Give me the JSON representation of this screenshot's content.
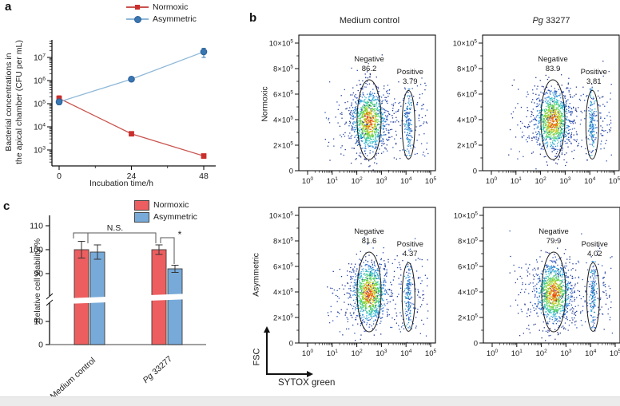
{
  "figure": {
    "panel_labels": {
      "a": "a",
      "b": "b",
      "c": "c"
    }
  },
  "chart_data": [
    {
      "id": "a",
      "type": "line",
      "xlabel": "Incubation time/h",
      "ylabel_line1": "Bacterial concentrations in",
      "ylabel_line2": "the apical chamber (CFU per mL)",
      "x": [
        0,
        24,
        48
      ],
      "xticks": [
        0,
        24,
        48
      ],
      "yscale": "log",
      "yticks_exp": [
        3,
        4,
        5,
        6,
        7
      ],
      "ylim_log": [
        2.4,
        7.75
      ],
      "series": [
        {
          "name": "Normoxic",
          "marker": "square",
          "marker_color": "#c92f2c",
          "line_color": "#c9534e",
          "values": [
            170000,
            5000,
            550
          ],
          "errors": [
            50000,
            900,
            120
          ]
        },
        {
          "name": "Asymmetric",
          "marker": "circle",
          "marker_color": "#3a76b1",
          "line_color": "#8fb8d8",
          "values": [
            120000,
            1150000,
            17500000
          ],
          "errors": [
            30000,
            220000,
            7500000
          ]
        }
      ],
      "legend_position": "top-right",
      "grid": false
    },
    {
      "id": "b",
      "type": "scatter-flow",
      "xlabel": "SYTOX green",
      "ylabel_axis": "FSC",
      "col_titles": [
        "Medium control",
        "Pg 33277"
      ],
      "col2_italic": "Pg",
      "col2_rest": " 33277",
      "row_titles": [
        "Normoxic",
        "Asymmetric"
      ],
      "xticks_exp": [
        0,
        1,
        2,
        3,
        4,
        5
      ],
      "yticks_coef": [
        0,
        2,
        4,
        6,
        8,
        10
      ],
      "ytick_unit_exp": "5",
      "plots": [
        {
          "row": "Normoxic",
          "col": "Medium control",
          "negative_label": "Negative",
          "negative_pct": "86.2",
          "positive_label": "Positive",
          "positive_pct": "3.79",
          "seed": 7
        },
        {
          "row": "Normoxic",
          "col": "Pg 33277",
          "negative_label": "Negative",
          "negative_pct": "83.9",
          "positive_label": "Positive",
          "positive_pct": "3.81",
          "seed": 13
        },
        {
          "row": "Asymmetric",
          "col": "Medium control",
          "negative_label": "Negative",
          "negative_pct": "81.6",
          "positive_label": "Positive",
          "positive_pct": "4.37",
          "seed": 21
        },
        {
          "row": "Asymmetric",
          "col": "Pg 33277",
          "negative_label": "Negative",
          "negative_pct": "79.9",
          "positive_label": "Positive",
          "positive_pct": "4.02",
          "seed": 29
        }
      ]
    },
    {
      "id": "c",
      "type": "bar",
      "ylabel": "Relative cell viability/%",
      "categories": [
        "Medium control",
        "Pg 33277"
      ],
      "cat2_italic": "Pg",
      "cat2_rest": " 33277",
      "yticks": [
        0,
        10,
        90,
        100,
        110
      ],
      "axis_break": true,
      "series": [
        {
          "name": "Normoxic",
          "color": "#ed5e60",
          "values": [
            100,
            100
          ],
          "errors": [
            3.5,
            2
          ]
        },
        {
          "name": "Asymmetric",
          "color": "#77aad9",
          "values": [
            99,
            92
          ],
          "errors": [
            3,
            1.5
          ]
        }
      ],
      "annotations": [
        {
          "label": "N.S.",
          "between": [
            "Medium control",
            "Pg 33277"
          ]
        },
        {
          "label": "*",
          "between": [
            "Pg 33277 Normoxic",
            "Pg 33277 Asymmetric"
          ]
        }
      ]
    }
  ]
}
